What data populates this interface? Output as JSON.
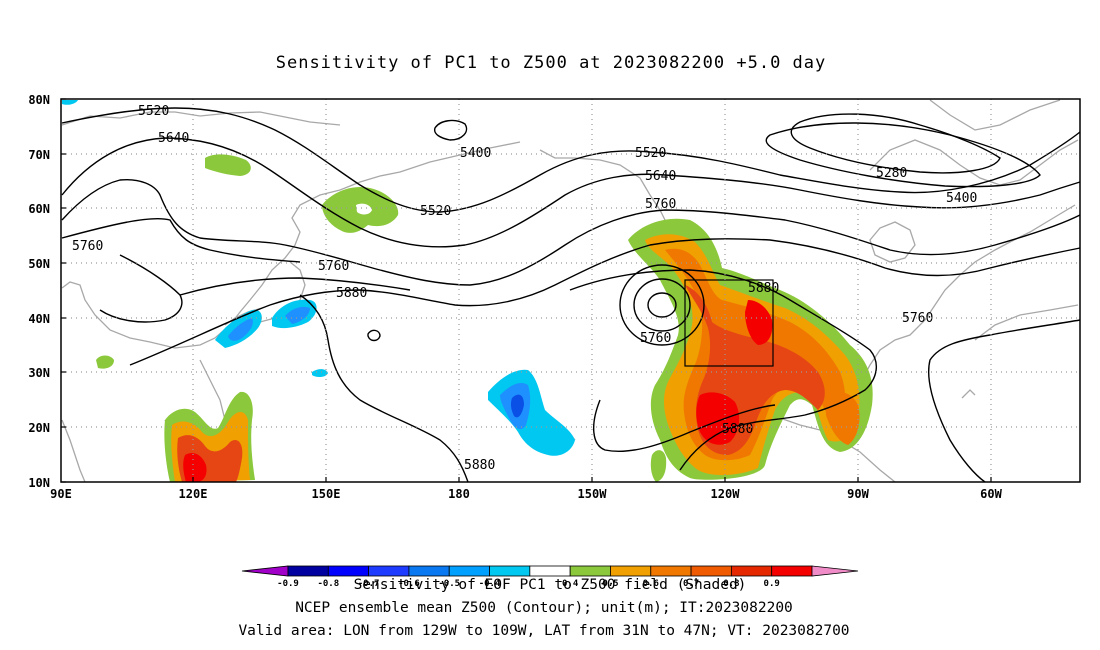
{
  "title": "Sensitivity of PC1 to Z500 at 2023082200 +5.0 day",
  "lat_ticks": [
    "80N",
    "70N",
    "60N",
    "50N",
    "40N",
    "30N",
    "20N",
    "10N"
  ],
  "lon_ticks": [
    "90E",
    "120E",
    "150E",
    "180",
    "150W",
    "120W",
    "90W",
    "60W"
  ],
  "contour_labels": {
    "c5520a": "5520",
    "c5640a": "5640",
    "c5400a": "5400",
    "c5520b": "5520",
    "c5520c": "5520",
    "c5640b": "5640",
    "c5760a": "5760",
    "c5760b": "5760",
    "c5760c": "5760",
    "c5880a": "5880",
    "c5880b": "5880",
    "c5880c": "5880",
    "c5880d": "5880",
    "c5760d": "5760",
    "c5280": "5280",
    "c5400b": "5400",
    "c5760e": "5760"
  },
  "colorbar": {
    "labels": [
      "-0.9",
      "-0.8",
      "-0.7",
      "-0.6",
      "-0.5",
      "-0.4",
      "0.4",
      "0.5",
      "0.6",
      "0.7",
      "0.8",
      "0.9"
    ],
    "colors": [
      "#a000c8",
      "#0000a0",
      "#0000ff",
      "#1e3cff",
      "#0a78f0",
      "#00a0ff",
      "#00c8f0",
      "#ffffff",
      "#8cc83c",
      "#f0a000",
      "#f07800",
      "#f05a00",
      "#e62800",
      "#f50000",
      "#f08cc8"
    ]
  },
  "shade_colors": {
    "pos_light": "#8cc83c",
    "pos_mid": "#f0a000",
    "pos_orange": "#f07800",
    "pos_red": "#e64614",
    "pos_deep": "#f50000",
    "neg_light": "#00c8f0",
    "neg_mid": "#1e90ff",
    "neg_deep": "#0a50e6"
  },
  "caption": {
    "line1": "Sensitivity of EOF PC1 to Z500 field (Shaded)",
    "line2": "NCEP ensemble mean Z500 (Contour); unit(m); IT:2023082200",
    "line3": "Valid area: LON from 129W to 109W, LAT from 31N to 47N; VT: 2023082700"
  }
}
